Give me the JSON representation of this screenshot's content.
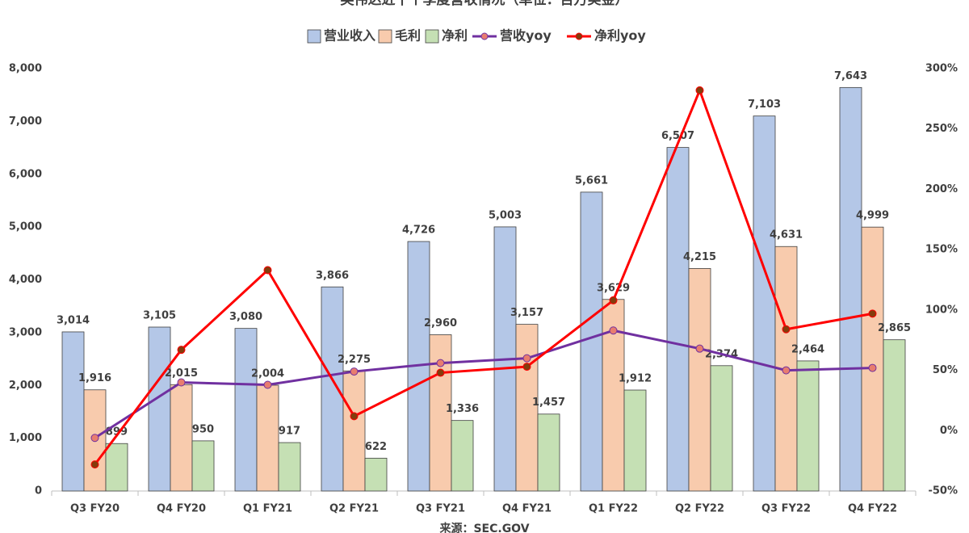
{
  "chart_data": {
    "type": "bar-line",
    "title": "英伟达近十个季度营收情况（单位：百万美金）",
    "source": "来源：SEC.GOV",
    "categories": [
      "Q3 FY20",
      "Q4 FY20",
      "Q1 FY21",
      "Q2 FY21",
      "Q3 FY21",
      "Q4 FY21",
      "Q1 FY22",
      "Q2 FY22",
      "Q3 FY22",
      "Q4 FY22"
    ],
    "series": [
      {
        "name": "营业收入",
        "type": "bar",
        "color": "#b4c7e7",
        "values": [
          3014,
          3105,
          3080,
          3866,
          4726,
          5003,
          5661,
          6507,
          7103,
          7643
        ],
        "value_labels": [
          "3,014",
          "3,105",
          "3,080",
          "3,866",
          "4,726",
          "5,003",
          "5,661",
          "6,507",
          "7,103",
          "7,643"
        ]
      },
      {
        "name": "毛利",
        "type": "bar",
        "color": "#f8cbad",
        "values": [
          1916,
          2015,
          2004,
          2275,
          2960,
          3157,
          3629,
          4215,
          4631,
          4999
        ],
        "value_labels": [
          "1,916",
          "2,015",
          "2,004",
          "2,275",
          "2,960",
          "3,157",
          "3,629",
          "4,215",
          "4,631",
          "4,999"
        ]
      },
      {
        "name": "净利",
        "type": "bar",
        "color": "#c5e0b4",
        "values": [
          899,
          950,
          917,
          622,
          1336,
          1457,
          1912,
          2374,
          2464,
          2865
        ],
        "value_labels": [
          "899",
          "950",
          "917",
          "622",
          "1,336",
          "1,457",
          "1,912",
          "2,374",
          "2,464",
          "2,865"
        ]
      },
      {
        "name": "营收yoy",
        "type": "line",
        "axis": "y2",
        "color": "#7030a0",
        "marker_color": "#e87d6f",
        "values": [
          -6,
          40,
          38,
          49,
          56,
          60,
          83,
          68,
          50,
          52
        ]
      },
      {
        "name": "净利yoy",
        "type": "line",
        "axis": "y2",
        "color": "#ff0000",
        "marker_color": "#843c0c",
        "values": [
          -28,
          67,
          133,
          12,
          48,
          53,
          108,
          282,
          84,
          97
        ]
      }
    ],
    "ylim": [
      0,
      8000
    ],
    "yticks": [
      0,
      {
        "value": 1000,
        "label": "1,000"
      },
      {
        "value": 2000,
        "label": "2,000"
      },
      {
        "value": 3000,
        "label": "3,000"
      },
      {
        "value": 4000,
        "label": "4,000"
      },
      {
        "value": 5000,
        "label": "5,000"
      },
      {
        "value": 6000,
        "label": "6,000"
      },
      {
        "value": 7000,
        "label": "7,000"
      },
      {
        "value": 8000,
        "label": "8,000"
      }
    ],
    "y2lim": [
      -50,
      300
    ],
    "y2ticks": [
      {
        "value": -50,
        "label": "-50%"
      },
      {
        "value": 0,
        "label": "0%"
      },
      {
        "value": 50,
        "label": "50%"
      },
      {
        "value": 100,
        "label": "100%"
      },
      {
        "value": 150,
        "label": "150%"
      },
      {
        "value": 200,
        "label": "200%"
      },
      {
        "value": 250,
        "label": "250%"
      },
      {
        "value": 300,
        "label": "300%"
      }
    ],
    "grid": false,
    "legend": "top"
  }
}
